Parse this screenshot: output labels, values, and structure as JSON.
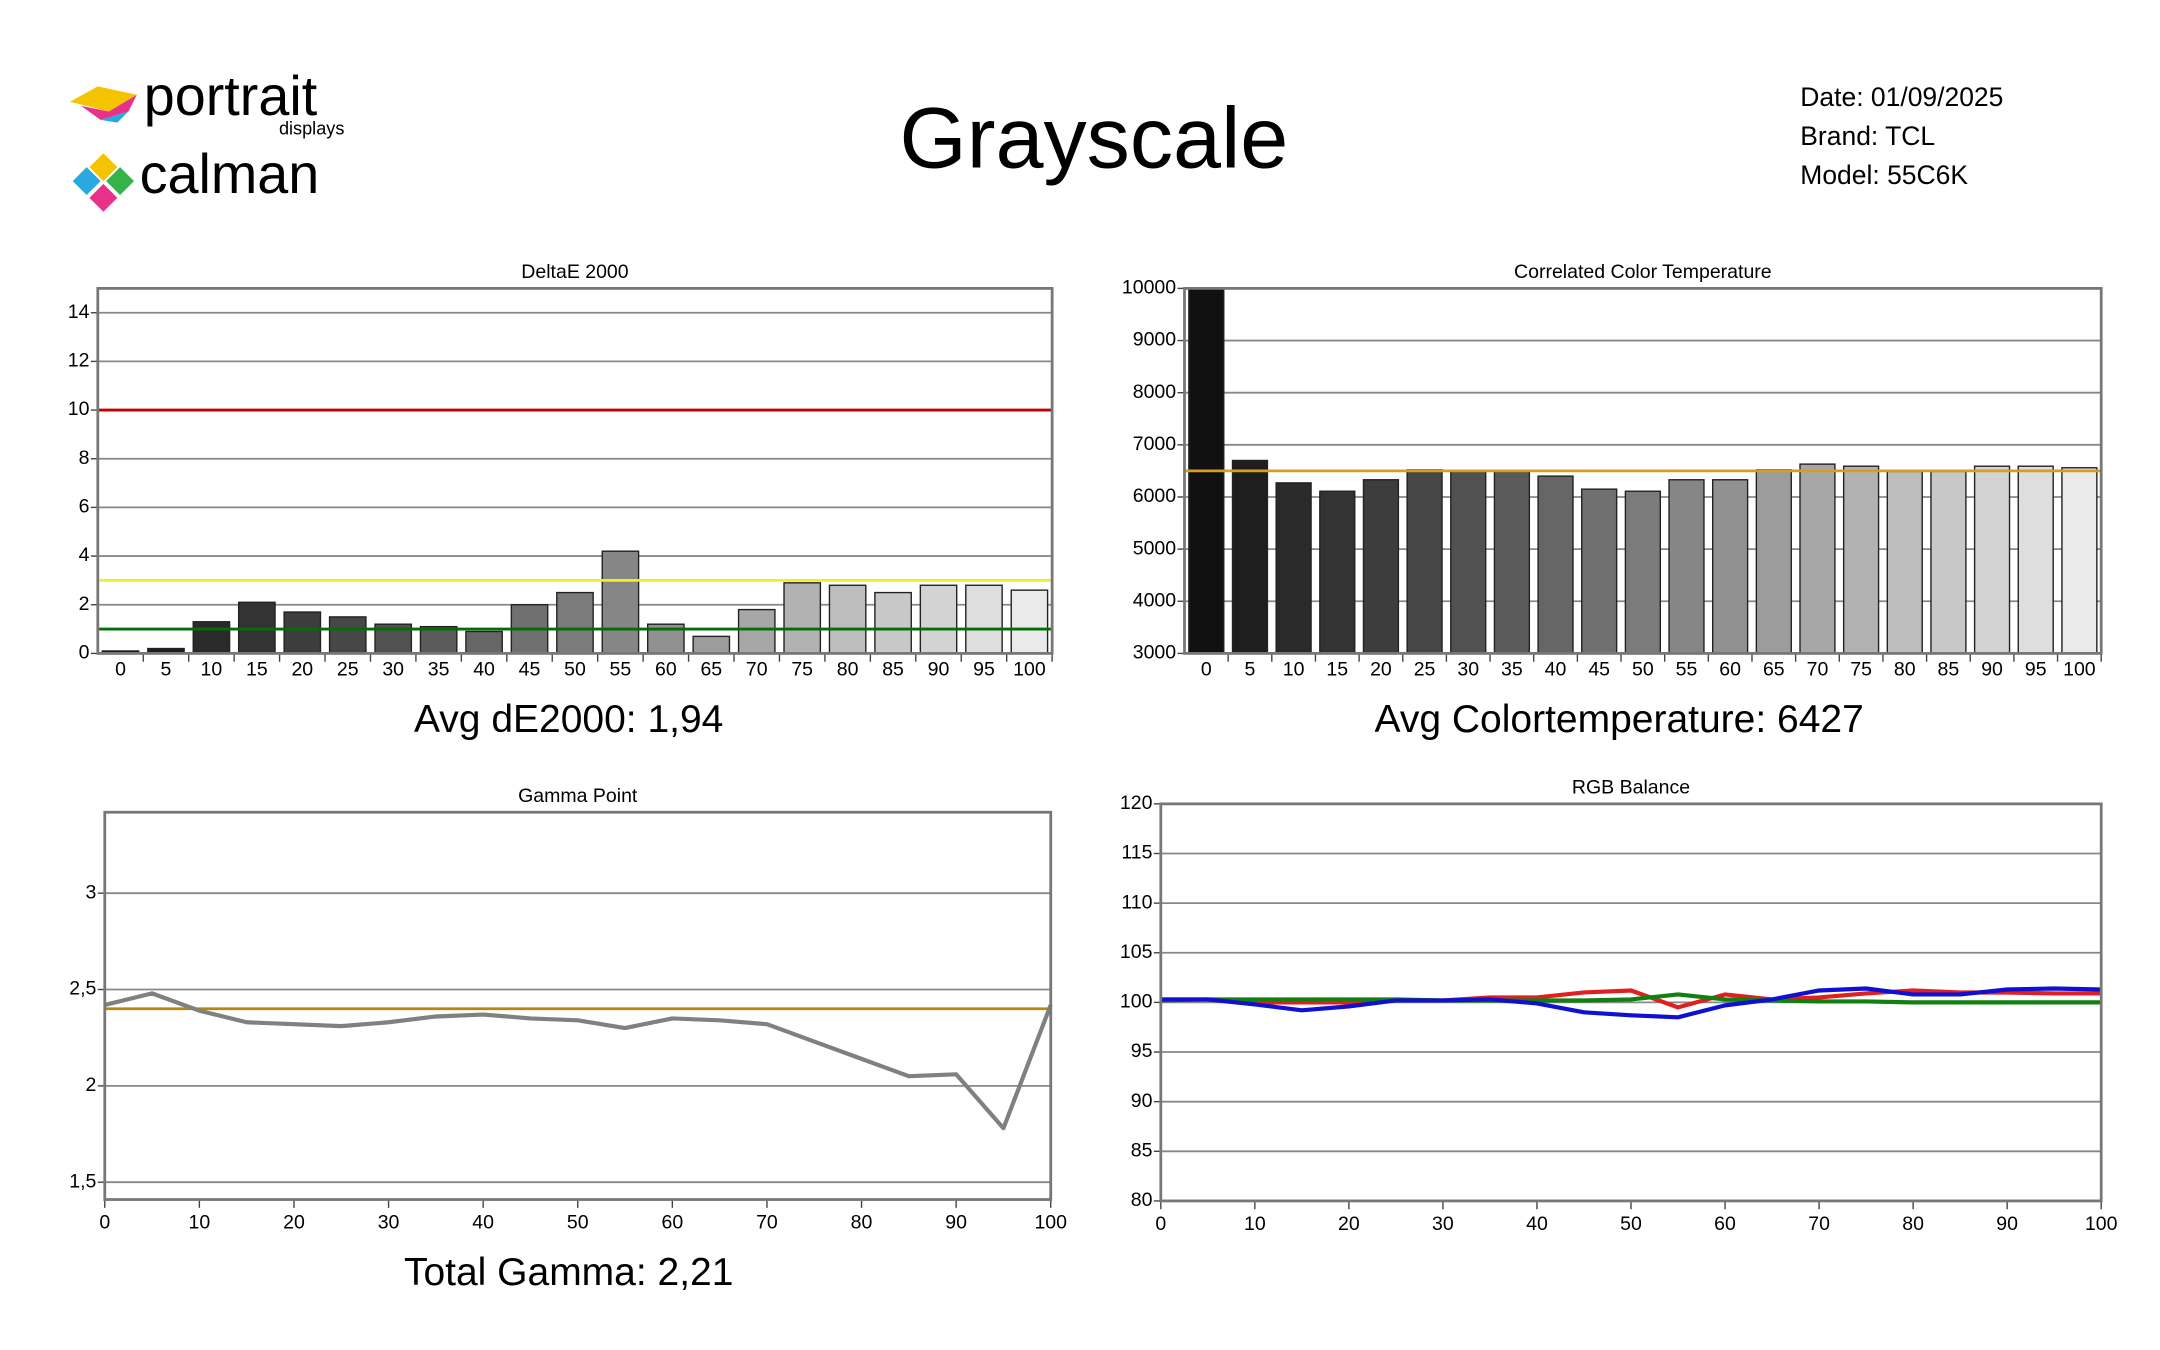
{
  "header": {
    "logo_top": "portrait",
    "logo_top_sub": "displays",
    "logo_bottom": "calman",
    "title": "Grayscale",
    "date": "Date: 01/09/2025",
    "brand": "Brand: TCL",
    "model": "Model: 55C6K"
  },
  "chart_data": [
    {
      "type": "bar",
      "title": "DeltaE 2000",
      "footer": "Avg  dE2000: 1,94",
      "categories": [
        "0",
        "5",
        "10",
        "15",
        "20",
        "25",
        "30",
        "35",
        "40",
        "45",
        "50",
        "55",
        "60",
        "65",
        "70",
        "75",
        "80",
        "85",
        "90",
        "95",
        "100"
      ],
      "values": [
        0.1,
        0.2,
        1.3,
        2.1,
        1.7,
        1.5,
        1.2,
        1.1,
        0.9,
        2.0,
        2.5,
        4.2,
        1.2,
        0.7,
        1.8,
        2.9,
        2.8,
        2.5,
        2.8,
        2.8,
        2.6
      ],
      "colors": [
        "#111111",
        "#1e1e1e",
        "#2a2a2a",
        "#333333",
        "#3d3d3d",
        "#474747",
        "#515151",
        "#5b5b5b",
        "#666666",
        "#707070",
        "#7b7b7b",
        "#868686",
        "#919191",
        "#9c9c9c",
        "#a7a7a7",
        "#b2b2b2",
        "#bdbdbd",
        "#c8c8c8",
        "#d3d3d3",
        "#dedede",
        "#eaeaea"
      ],
      "ylim": [
        0,
        15
      ],
      "yticks": [
        0,
        2,
        4,
        6,
        8,
        10,
        12,
        14
      ],
      "grid": true,
      "reference_lines": [
        {
          "value": 10,
          "color": "#c00000"
        },
        {
          "value": 3,
          "color": "#f0f020"
        },
        {
          "value": 1,
          "color": "#007000"
        }
      ]
    },
    {
      "type": "bar",
      "title": "Correlated Color Temperature",
      "footer": "Avg Colortemperature: 6427",
      "categories": [
        "0",
        "5",
        "10",
        "15",
        "20",
        "25",
        "30",
        "35",
        "40",
        "45",
        "50",
        "55",
        "60",
        "65",
        "70",
        "75",
        "80",
        "85",
        "90",
        "95",
        "100"
      ],
      "values": [
        10000,
        6700,
        6270,
        6110,
        6330,
        6520,
        6490,
        6490,
        6400,
        6150,
        6110,
        6330,
        6330,
        6520,
        6630,
        6590,
        6490,
        6490,
        6590,
        6590,
        6560
      ],
      "colors": [
        "#111111",
        "#1e1e1e",
        "#2a2a2a",
        "#333333",
        "#3d3d3d",
        "#474747",
        "#515151",
        "#5b5b5b",
        "#666666",
        "#707070",
        "#7b7b7b",
        "#868686",
        "#919191",
        "#9c9c9c",
        "#a7a7a7",
        "#b2b2b2",
        "#bdbdbd",
        "#c8c8c8",
        "#d3d3d3",
        "#dedede",
        "#eaeaea"
      ],
      "ylim": [
        3000,
        10000
      ],
      "yticks": [
        3000,
        4000,
        5000,
        6000,
        7000,
        8000,
        9000,
        10000
      ],
      "grid": true,
      "reference_lines": [
        {
          "value": 6500,
          "color": "#d4a017"
        }
      ]
    },
    {
      "type": "line",
      "title": "Gamma Point",
      "footer": "Total Gamma: 2,21",
      "x": [
        0,
        5,
        10,
        15,
        20,
        25,
        30,
        35,
        40,
        45,
        50,
        55,
        60,
        65,
        70,
        75,
        80,
        85,
        90,
        95,
        100
      ],
      "values": [
        2.42,
        2.48,
        2.39,
        2.33,
        2.32,
        2.31,
        2.33,
        2.36,
        2.37,
        2.35,
        2.34,
        2.3,
        2.35,
        2.34,
        2.32,
        2.23,
        2.14,
        2.05,
        2.06,
        1.78,
        2.42
      ],
      "color": "#808080",
      "xlim": [
        0,
        100
      ],
      "xticks": [
        0,
        10,
        20,
        30,
        40,
        50,
        60,
        70,
        80,
        90,
        100
      ],
      "ylim": [
        1.41,
        3.42
      ],
      "yticks": [
        {
          "value": 1.5,
          "label": "1,5"
        },
        2,
        {
          "value": 2.5,
          "label": "2,5"
        },
        3
      ],
      "grid": true,
      "reference_lines": [
        {
          "value": 2.4,
          "color": "#b8860b"
        }
      ]
    },
    {
      "type": "line",
      "title": "RGB Balance",
      "x": [
        0,
        5,
        10,
        15,
        20,
        25,
        30,
        35,
        40,
        45,
        50,
        55,
        60,
        65,
        70,
        75,
        80,
        85,
        90,
        95,
        100
      ],
      "series": [
        {
          "color": "#e02020",
          "values": [
            100.3,
            100.3,
            100,
            100,
            100,
            100.2,
            100.2,
            100.5,
            100.5,
            101,
            101.2,
            99.5,
            100.8,
            100.3,
            100.5,
            100.9,
            101.2,
            101,
            101,
            100.9,
            100.9
          ]
        },
        {
          "color": "#108010",
          "values": [
            100.2,
            100.3,
            100.3,
            100.3,
            100.3,
            100.3,
            100.2,
            100.2,
            100.2,
            100.2,
            100.3,
            100.8,
            100.3,
            100.2,
            100.1,
            100.1,
            100,
            100,
            100,
            100,
            100
          ]
        },
        {
          "color": "#1010d0",
          "values": [
            100.3,
            100.3,
            99.8,
            99.2,
            99.6,
            100.2,
            100.2,
            100.3,
            99.9,
            99,
            98.7,
            98.5,
            99.7,
            100.3,
            101.2,
            101.4,
            100.8,
            100.8,
            101.3,
            101.4,
            101.3
          ]
        }
      ],
      "xlim": [
        0,
        100
      ],
      "xticks": [
        0,
        10,
        20,
        30,
        40,
        50,
        60,
        70,
        80,
        90,
        100
      ],
      "ylim": [
        80,
        120
      ],
      "yticks": [
        80,
        85,
        90,
        95,
        100,
        105,
        110,
        115,
        120
      ],
      "grid": true
    }
  ]
}
